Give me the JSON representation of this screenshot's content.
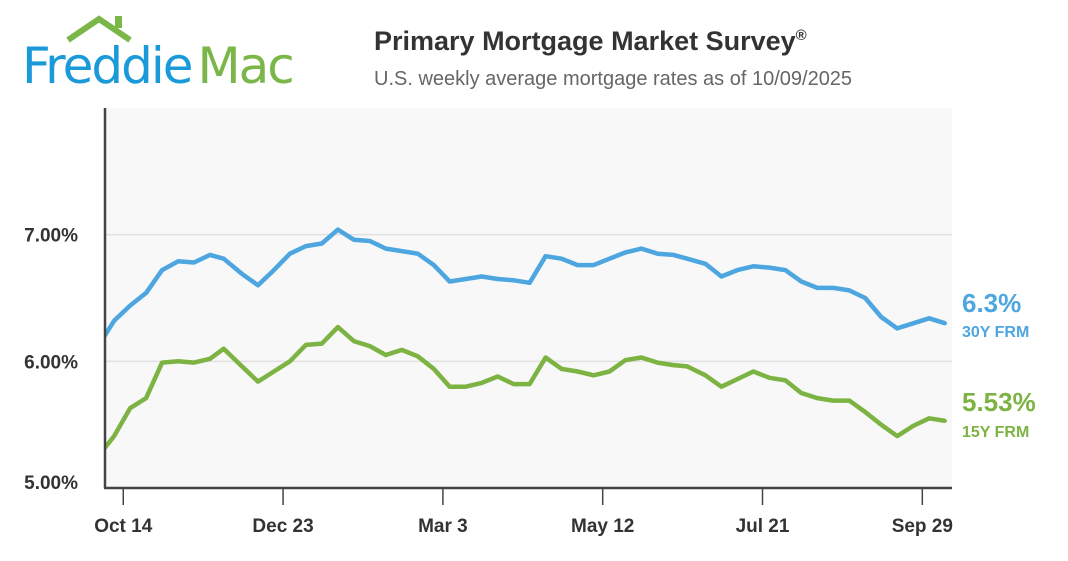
{
  "logo": {
    "text_part1": "Freddie",
    "text_part2": "Mac"
  },
  "header": {
    "title": "Primary Mortgage Market Survey",
    "title_mark": "®",
    "subtitle": "U.S. weekly average mortgage rates as of 10/09/2025"
  },
  "chart_data": {
    "type": "line",
    "title": "Primary Mortgage Market Survey®",
    "subtitle": "U.S. weekly average mortgage rates as of 10/09/2025",
    "xlabel": "",
    "ylabel": "",
    "ylim": [
      5,
      8
    ],
    "xlim": [
      "2024-10-06",
      "2025-10-12"
    ],
    "grid": true,
    "y_ticks": [
      {
        "value": 5,
        "label": "5.00%"
      },
      {
        "value": 6,
        "label": "6.00%"
      },
      {
        "value": 7,
        "label": "7.00%"
      }
    ],
    "x_ticks": [
      {
        "date": "2024-10-14",
        "label": "Oct 14"
      },
      {
        "date": "2024-12-23",
        "label": "Dec 23"
      },
      {
        "date": "2025-03-03",
        "label": "Mar 3"
      },
      {
        "date": "2025-05-12",
        "label": "May 12"
      },
      {
        "date": "2025-07-21",
        "label": "Jul 21"
      },
      {
        "date": "2025-09-29",
        "label": "Sep 29"
      }
    ],
    "x": [
      "2024-10-03",
      "2024-10-10",
      "2024-10-17",
      "2024-10-24",
      "2024-10-31",
      "2024-11-07",
      "2024-11-14",
      "2024-11-21",
      "2024-11-27",
      "2024-12-05",
      "2024-12-12",
      "2024-12-19",
      "2024-12-26",
      "2025-01-02",
      "2025-01-09",
      "2025-01-16",
      "2025-01-23",
      "2025-01-30",
      "2025-02-06",
      "2025-02-13",
      "2025-02-20",
      "2025-02-27",
      "2025-03-06",
      "2025-03-13",
      "2025-03-20",
      "2025-03-27",
      "2025-04-03",
      "2025-04-10",
      "2025-04-17",
      "2025-04-24",
      "2025-05-01",
      "2025-05-08",
      "2025-05-15",
      "2025-05-22",
      "2025-05-29",
      "2025-06-05",
      "2025-06-12",
      "2025-06-18",
      "2025-06-26",
      "2025-07-03",
      "2025-07-10",
      "2025-07-17",
      "2025-07-24",
      "2025-07-31",
      "2025-08-07",
      "2025-08-14",
      "2025-08-21",
      "2025-08-28",
      "2025-09-04",
      "2025-09-11",
      "2025-09-18",
      "2025-09-25",
      "2025-10-02",
      "2025-10-09"
    ],
    "series": [
      {
        "name": "30Y FRM",
        "latest_label": "6.3%",
        "color": "#4da6e0",
        "values": [
          6.12,
          6.32,
          6.44,
          6.54,
          6.72,
          6.79,
          6.78,
          6.84,
          6.81,
          6.69,
          6.6,
          6.72,
          6.85,
          6.91,
          6.93,
          7.04,
          6.96,
          6.95,
          6.89,
          6.87,
          6.85,
          6.76,
          6.63,
          6.65,
          6.67,
          6.65,
          6.64,
          6.62,
          6.83,
          6.81,
          6.76,
          6.76,
          6.81,
          6.86,
          6.89,
          6.85,
          6.84,
          6.81,
          6.77,
          6.67,
          6.72,
          6.75,
          6.74,
          6.72,
          6.63,
          6.58,
          6.58,
          6.56,
          6.5,
          6.35,
          6.26,
          6.3,
          6.34,
          6.3
        ]
      },
      {
        "name": "15Y FRM",
        "latest_label": "5.53%",
        "color": "#7cb342",
        "values": [
          5.25,
          5.41,
          5.63,
          5.71,
          5.99,
          6.0,
          5.99,
          6.02,
          6.1,
          5.96,
          5.84,
          5.92,
          6.0,
          6.13,
          6.14,
          6.27,
          6.16,
          6.12,
          6.05,
          6.09,
          6.04,
          5.94,
          5.8,
          5.8,
          5.83,
          5.88,
          5.82,
          5.82,
          6.03,
          5.94,
          5.92,
          5.89,
          5.92,
          6.01,
          6.03,
          5.99,
          5.97,
          5.96,
          5.89,
          5.8,
          5.86,
          5.92,
          5.87,
          5.85,
          5.75,
          5.71,
          5.69,
          5.69,
          5.6,
          5.5,
          5.41,
          5.49,
          5.55,
          5.53
        ]
      }
    ]
  }
}
